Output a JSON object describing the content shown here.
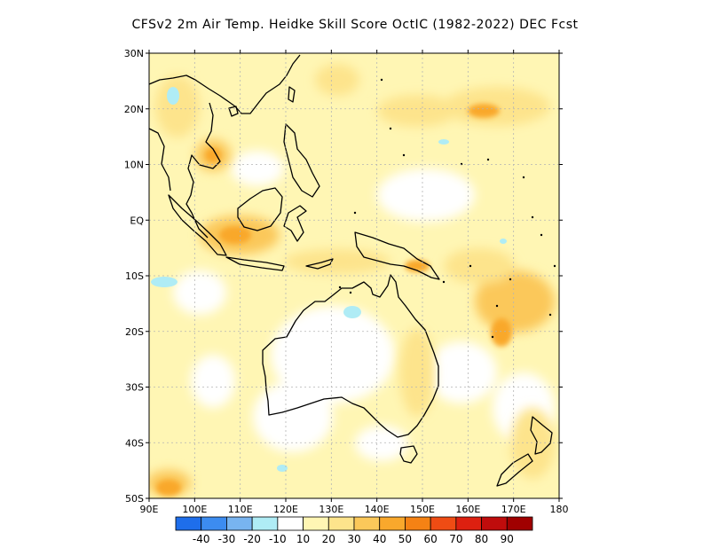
{
  "title": "CFSv2  2m Air Temp. Heidke Skill Score OctIC (1982-2022) DEC Fcst",
  "map": {
    "lon_range": [
      90,
      180
    ],
    "lat_range": [
      -50,
      30
    ],
    "lon_ticks": [
      "90E",
      "100E",
      "110E",
      "120E",
      "130E",
      "140E",
      "150E",
      "160E",
      "170E",
      "180"
    ],
    "lat_ticks": [
      "30N",
      "20N",
      "10N",
      "EQ",
      "10S",
      "20S",
      "30S",
      "40S",
      "50S"
    ],
    "grid": "dotted"
  },
  "colorbar": {
    "labels": [
      "-40",
      "-30",
      "-20",
      "-10",
      "10",
      "20",
      "30",
      "40",
      "50",
      "60",
      "70",
      "80",
      "90"
    ],
    "colors": [
      "#1e6eeb",
      "#3c8cf0",
      "#78b4f0",
      "#afecf5",
      "#ffffff",
      "#fff6b4",
      "#fde48c",
      "#fbc85a",
      "#f9a82c",
      "#f58214",
      "#ef4c14",
      "#dd2010",
      "#bf0c0c",
      "#a00000"
    ]
  },
  "colors": {
    "land_outline": "#000000",
    "grid": "#b4b4b4"
  }
}
